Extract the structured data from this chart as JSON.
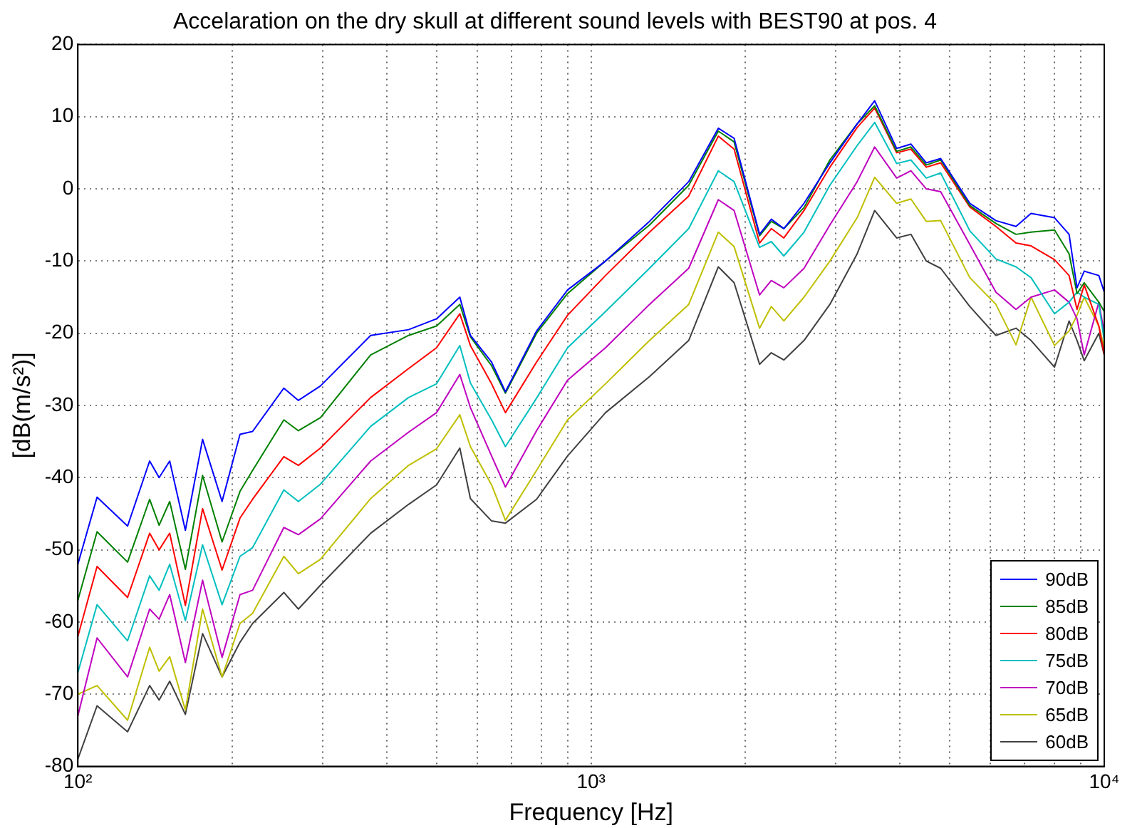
{
  "chart_data": {
    "type": "line",
    "title": "Accelaration on the dry skull at different sound levels with BEST90 at pos. 4",
    "xlabel": "Frequency [Hz]",
    "ylabel": "[dB(m/s²)]",
    "x": [
      100,
      109,
      125,
      138,
      144,
      151,
      162,
      175,
      191,
      207,
      219,
      252,
      269,
      297,
      372,
      441,
      500,
      555,
      582,
      640,
      681,
      783,
      900,
      1067,
      1300,
      1550,
      1770,
      1900,
      2130,
      2245,
      2375,
      2600,
      2920,
      3300,
      3570,
      3940,
      4200,
      4500,
      4800,
      5470,
      6150,
      6730,
      7200,
      8000,
      8540,
      8850,
      9140,
      9760,
      10000
    ],
    "series": [
      {
        "name": "90dB",
        "color": "#0000ff",
        "values": [
          -52,
          -42.7,
          -46.7,
          -37.7,
          -40,
          -37.7,
          -47.3,
          -34.7,
          -43.3,
          -34,
          -33.6,
          -27.6,
          -29.3,
          -27.3,
          -20.3,
          -19.5,
          -18,
          -15,
          -20.3,
          -24,
          -28.1,
          -19.7,
          -14,
          -10,
          -4.5,
          1,
          8.4,
          7,
          -6.3,
          -4.2,
          -5.5,
          -2,
          3.6,
          9,
          12.2,
          5.6,
          6.2,
          3.6,
          4.2,
          -2,
          -4.4,
          -5.2,
          -3.4,
          -4,
          -6.3,
          -13.7,
          -11.4,
          -12,
          -14.3
        ]
      },
      {
        "name": "85dB",
        "color": "#008000",
        "values": [
          -57,
          -47.5,
          -51.7,
          -43,
          -46.6,
          -43.3,
          -52.7,
          -39.7,
          -48.9,
          -41.9,
          -39,
          -32,
          -33.5,
          -31.7,
          -23,
          -20.3,
          -19,
          -16,
          -20.5,
          -24.5,
          -28.3,
          -20,
          -14.5,
          -10,
          -5,
          0.5,
          8,
          6.5,
          -6.5,
          -4.5,
          -5.5,
          -2.6,
          4,
          9,
          11.5,
          5.2,
          5.8,
          3.3,
          4,
          -2.3,
          -4.8,
          -6.3,
          -6,
          -5.7,
          -9,
          -14.5,
          -13,
          -15.7,
          -17
        ]
      },
      {
        "name": "80dB",
        "color": "#ff0000",
        "values": [
          -62,
          -52.3,
          -56.6,
          -47.7,
          -50,
          -47.7,
          -57.7,
          -44.3,
          -52.8,
          -45.6,
          -43,
          -37.1,
          -38.3,
          -35.9,
          -28.9,
          -24.9,
          -22,
          -17.3,
          -21.7,
          -27,
          -31,
          -24,
          -17.5,
          -12,
          -6,
          -1,
          7.3,
          5.5,
          -7.5,
          -5.5,
          -6.8,
          -3,
          3,
          8.5,
          11.2,
          5,
          5.5,
          3,
          3.6,
          -2.5,
          -5.2,
          -7.5,
          -7.9,
          -9.8,
          -12,
          -16.7,
          -13.3,
          -19,
          -23
        ]
      },
      {
        "name": "75dB",
        "color": "#00bfbf",
        "values": [
          -67,
          -57.6,
          -62.6,
          -53.6,
          -55.6,
          -52,
          -59.8,
          -49.3,
          -57.6,
          -50.9,
          -49.7,
          -41.7,
          -43.3,
          -40.9,
          -32.9,
          -28.9,
          -27,
          -21.7,
          -26.9,
          -32,
          -35.7,
          -29,
          -22,
          -17,
          -11,
          -5.5,
          2.5,
          1,
          -8.1,
          -7.3,
          -9.3,
          -6,
          0.5,
          6,
          9.2,
          3.5,
          4,
          1.5,
          2.2,
          -5.8,
          -9.7,
          -10.8,
          -12.3,
          -17.3,
          -15.7,
          -14.3,
          -15,
          -16,
          -21
        ]
      },
      {
        "name": "70dB",
        "color": "#bf00bf",
        "values": [
          -73,
          -62.2,
          -67.6,
          -58.2,
          -59.6,
          -56.2,
          -65.6,
          -54.2,
          -64.9,
          -56.2,
          -55.6,
          -46.9,
          -47.9,
          -45.7,
          -37.7,
          -33.7,
          -31,
          -25.7,
          -30.3,
          -37,
          -41.3,
          -33.5,
          -26.5,
          -22,
          -16,
          -11,
          -1.5,
          -3,
          -14.7,
          -12.7,
          -13.7,
          -11,
          -5,
          1,
          5.8,
          1.5,
          2.5,
          0,
          -0.4,
          -7.7,
          -14.3,
          -16.7,
          -15,
          -14,
          -15.7,
          -18,
          -23,
          -15.7,
          -20
        ]
      },
      {
        "name": "65dB",
        "color": "#bfbf00",
        "values": [
          -70,
          -68.8,
          -73.6,
          -63.5,
          -66.8,
          -64.8,
          -72.2,
          -58.2,
          -67.6,
          -60.2,
          -58.8,
          -50.9,
          -53.3,
          -51.3,
          -42.9,
          -38.3,
          -36,
          -31.3,
          -35.7,
          -41,
          -45.9,
          -39,
          -32,
          -27,
          -21,
          -16,
          -6,
          -8,
          -19.3,
          -16.3,
          -18.3,
          -15,
          -10,
          -4,
          1.6,
          -2,
          -1.4,
          -4.5,
          -4.4,
          -12.3,
          -16,
          -21.6,
          -15,
          -21.7,
          -19.7,
          -17.5,
          -15,
          -19,
          -22
        ]
      },
      {
        "name": "60dB",
        "color": "#404040",
        "values": [
          -79,
          -71.6,
          -75.2,
          -68.8,
          -70.8,
          -68.2,
          -72.8,
          -61.6,
          -67.6,
          -62.8,
          -60.2,
          -55.9,
          -58.2,
          -54.9,
          -47.7,
          -43.7,
          -41,
          -35.9,
          -42.9,
          -46,
          -46.3,
          -43,
          -37,
          -31,
          -26,
          -21,
          -10.8,
          -13,
          -24.3,
          -22.7,
          -23.7,
          -21,
          -16,
          -9,
          -3,
          -6.8,
          -6.3,
          -10,
          -11,
          -16.3,
          -20.3,
          -19.3,
          -21,
          -24.7,
          -18.3,
          -21,
          -23.8,
          -20,
          -23
        ]
      }
    ],
    "log": "x",
    "xlim": [
      100,
      10000
    ],
    "xticks": [
      {
        "value": 100,
        "label": "10²"
      },
      {
        "value": 200,
        "label": null
      },
      {
        "value": 300,
        "label": null
      },
      {
        "value": 400,
        "label": null
      },
      {
        "value": 500,
        "label": null
      },
      {
        "value": 600,
        "label": null
      },
      {
        "value": 700,
        "label": null
      },
      {
        "value": 800,
        "label": null
      },
      {
        "value": 900,
        "label": null
      },
      {
        "value": 1000,
        "label": "10³"
      },
      {
        "value": 2000,
        "label": null
      },
      {
        "value": 3000,
        "label": null
      },
      {
        "value": 4000,
        "label": null
      },
      {
        "value": 5000,
        "label": null
      },
      {
        "value": 6000,
        "label": null
      },
      {
        "value": 7000,
        "label": null
      },
      {
        "value": 8000,
        "label": null
      },
      {
        "value": 9000,
        "label": null
      },
      {
        "value": 10000,
        "label": "10⁴"
      }
    ],
    "ylim": [
      -80,
      20
    ],
    "yticks": [
      -80,
      -70,
      -60,
      -50,
      -40,
      -30,
      -20,
      -10,
      0,
      10,
      20
    ],
    "grid": true,
    "legend": "bottom right",
    "marker": "none",
    "line_style": "solid"
  }
}
